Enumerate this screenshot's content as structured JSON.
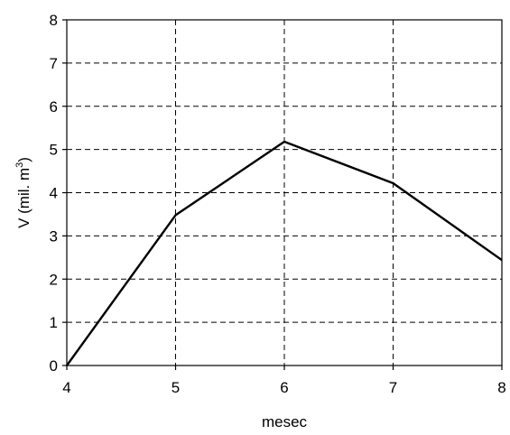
{
  "chart_data": {
    "type": "line",
    "xlabel": "mesec",
    "ylabel": {
      "prefix": "V (mil. m",
      "superscript": "3",
      "suffix": ")"
    },
    "xlim": [
      4,
      8
    ],
    "ylim": [
      0,
      8
    ],
    "xticks": [
      4,
      5,
      6,
      7,
      8
    ],
    "yticks": [
      0,
      1,
      2,
      3,
      4,
      5,
      6,
      7,
      8
    ],
    "grid": true,
    "legend": "none",
    "series": [
      {
        "x": [
          4,
          5,
          6,
          7,
          8
        ],
        "values": [
          0,
          3.48,
          5.18,
          4.22,
          2.44
        ],
        "color": "#000000"
      }
    ]
  }
}
